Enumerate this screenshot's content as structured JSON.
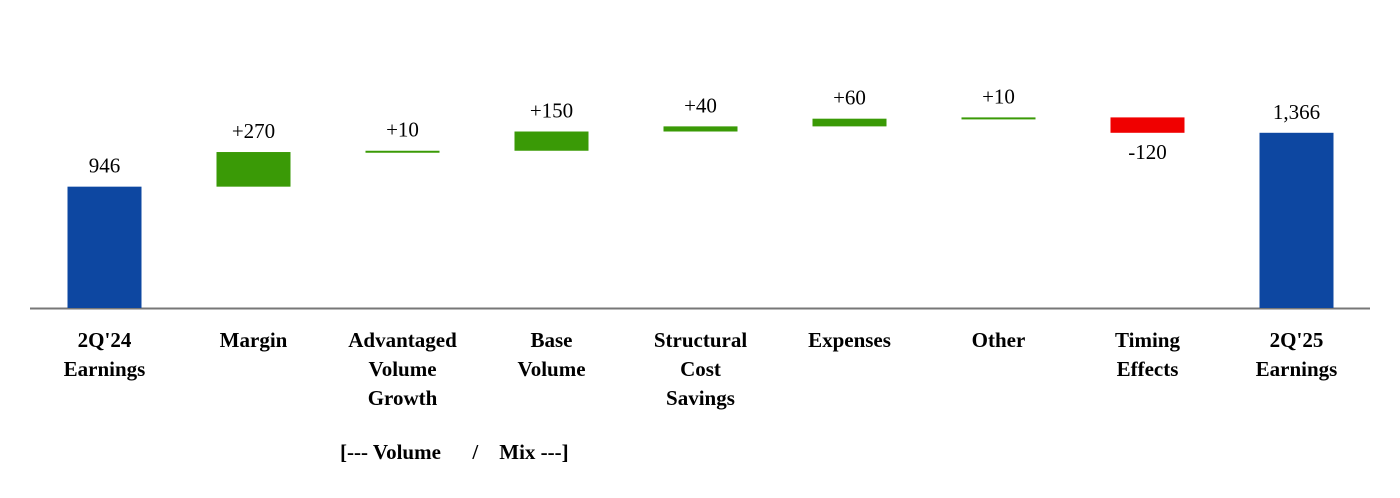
{
  "chart_data": {
    "type": "waterfall",
    "categories": [
      "2Q'24 Earnings",
      "Margin",
      "Advantaged Volume Growth",
      "Base Volume",
      "Structural Cost Savings",
      "Expenses",
      "Other",
      "Timing Effects",
      "2Q'25 Earnings"
    ],
    "values": [
      946,
      270,
      10,
      150,
      40,
      60,
      10,
      -120,
      1366
    ],
    "value_labels": [
      "946",
      "+270",
      "+10",
      "+150",
      "+40",
      "+60",
      "+10",
      "-120",
      "1,366"
    ],
    "measure": [
      "absolute",
      "relative",
      "relative",
      "relative",
      "relative",
      "relative",
      "relative",
      "relative",
      "absolute"
    ],
    "colors": {
      "total": "#0d47a1",
      "increase": "#3a9a06",
      "decrease": "#f00000"
    },
    "annotation": "[--- Volume      /    Mix ---]"
  }
}
